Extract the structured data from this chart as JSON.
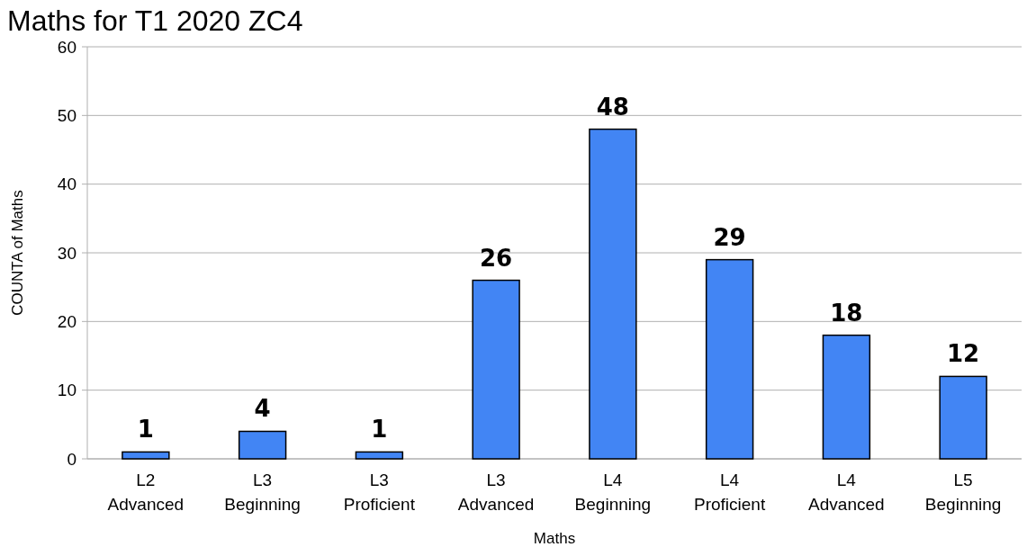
{
  "chart_data": {
    "type": "bar",
    "title": "Maths for T1 2020 ZC4",
    "xlabel": "Maths",
    "ylabel": "COUNTA of Maths",
    "categories": [
      "L2 Advanced",
      "L3 Beginning",
      "L3 Proficient",
      "L3 Advanced",
      "L4 Beginning",
      "L4 Proficient",
      "L4 Advanced",
      "L5 Beginning"
    ],
    "values": [
      1,
      4,
      1,
      26,
      48,
      29,
      18,
      12
    ],
    "color": "#4285f4",
    "ylim": [
      0,
      60
    ],
    "yticks": [
      0,
      10,
      20,
      30,
      40,
      50,
      60
    ],
    "grid": "y",
    "data_labels": true
  }
}
